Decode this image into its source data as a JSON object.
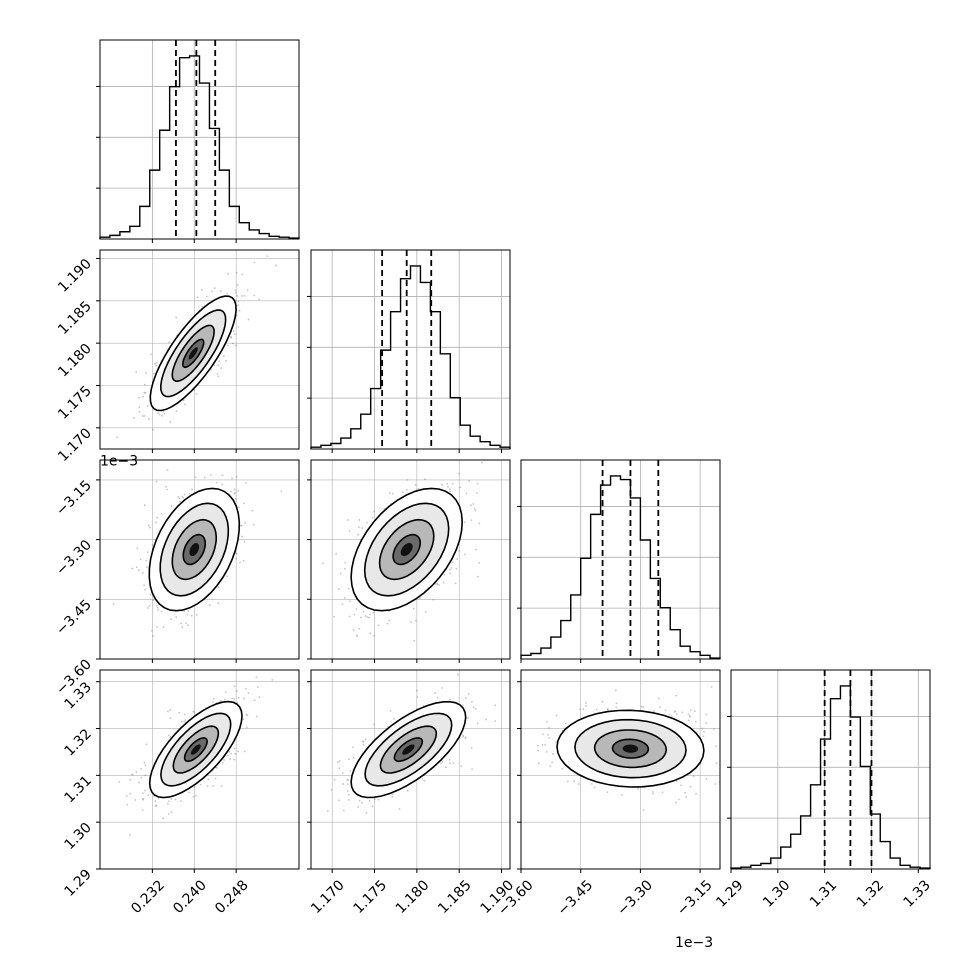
{
  "chart_data": {
    "type": "corner",
    "grid": true,
    "n_params": 4,
    "colors": {
      "line": "#000000",
      "grid": "#b0b0b0",
      "points": "#7f7f7f"
    },
    "params": [
      {
        "range": [
          0.222,
          0.26
        ],
        "ticks": [
          0.232,
          0.24,
          0.248
        ],
        "tick_labels": [
          "0.232",
          "0.240",
          "0.248"
        ],
        "quantiles": [
          0.2365,
          0.2404,
          0.244
        ],
        "offset_label": "",
        "hist": [
          0.01,
          0.02,
          0.04,
          0.07,
          0.18,
          0.38,
          0.6,
          0.84,
          1.0,
          1.01,
          0.86,
          0.61,
          0.38,
          0.18,
          0.09,
          0.05,
          0.03,
          0.015,
          0.01,
          0.005
        ]
      },
      {
        "range": [
          1.1675,
          1.191
        ],
        "ticks": [
          1.17,
          1.175,
          1.18,
          1.185,
          1.19
        ],
        "tick_labels": [
          "1.170",
          "1.175",
          "1.180",
          "1.185",
          "1.190"
        ],
        "quantiles": [
          1.1759,
          1.1788,
          1.1817
        ],
        "offset_label": "",
        "hist": [
          0.01,
          0.02,
          0.03,
          0.06,
          0.11,
          0.19,
          0.33,
          0.54,
          0.75,
          0.93,
          1.0,
          0.91,
          0.75,
          0.52,
          0.28,
          0.13,
          0.07,
          0.04,
          0.02,
          0.01
        ]
      },
      {
        "range": [
          -3.6,
          -3.1
        ],
        "ticks": [
          -3.6,
          -3.45,
          -3.3,
          -3.15
        ],
        "tick_labels": [
          "−3.60",
          "−3.45",
          "−3.30",
          "−3.15"
        ],
        "quantiles": [
          -3.395,
          -3.325,
          -3.255
        ],
        "offset_label": "1e−3",
        "hist": [
          0.02,
          0.03,
          0.06,
          0.12,
          0.21,
          0.35,
          0.55,
          0.79,
          0.95,
          1.0,
          0.98,
          0.88,
          0.65,
          0.44,
          0.28,
          0.16,
          0.07,
          0.04,
          0.02,
          0.005
        ]
      },
      {
        "range": [
          1.29,
          1.3325
        ],
        "ticks": [
          1.29,
          1.3,
          1.31,
          1.32,
          1.33
        ],
        "tick_labels": [
          "1.29",
          "1.30",
          "1.31",
          "1.32",
          "1.33"
        ],
        "quantiles": [
          1.31,
          1.3155,
          1.32
        ],
        "offset_label": "",
        "hist": [
          0.005,
          0.01,
          0.02,
          0.03,
          0.06,
          0.12,
          0.19,
          0.29,
          0.46,
          0.71,
          0.93,
          1.0,
          0.83,
          0.56,
          0.3,
          0.15,
          0.06,
          0.02,
          0.01,
          0.005
        ]
      }
    ],
    "pairs": [
      {
        "x": 0,
        "y": 1,
        "mean": [
          0.2398,
          1.1788
        ],
        "std": [
          0.004,
          0.0033
        ],
        "rho": 0.78
      },
      {
        "x": 0,
        "y": 2,
        "mean": [
          0.24,
          -3.325
        ],
        "std": [
          0.0042,
          0.075
        ],
        "rho": 0.4
      },
      {
        "x": 1,
        "y": 2,
        "mean": [
          1.1788,
          -3.325
        ],
        "std": [
          0.0032,
          0.075
        ],
        "rho": 0.45
      },
      {
        "x": 0,
        "y": 3,
        "mean": [
          0.2403,
          1.3155
        ],
        "std": [
          0.0043,
          0.005
        ],
        "rho": 0.7
      },
      {
        "x": 1,
        "y": 3,
        "mean": [
          1.179,
          1.3155
        ],
        "std": [
          0.0033,
          0.005
        ],
        "rho": 0.68
      },
      {
        "x": 2,
        "y": 3,
        "mean": [
          -3.325,
          1.3157
        ],
        "std": [
          0.09,
          0.004
        ],
        "rho": -0.05
      }
    ]
  }
}
